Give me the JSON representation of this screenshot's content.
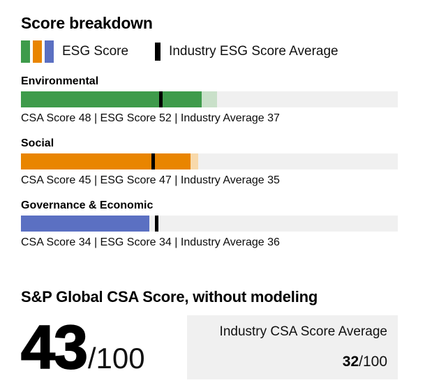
{
  "title": "Score breakdown",
  "legend": {
    "esg_label": "ESG Score",
    "industry_label": "Industry ESG Score Average",
    "stripe_colors": [
      "#3e9b4b",
      "#e98500",
      "#5b70c2"
    ],
    "marker_color": "#000000"
  },
  "track_color": "#f0f0f0",
  "sections": [
    {
      "name": "Environmental",
      "csa": 48,
      "esg": 52,
      "industry": 37,
      "color": "#3e9b4b",
      "light_color": "#c9e0c9",
      "info": "CSA Score 48 | ESG Score 52 | Industry Average 37"
    },
    {
      "name": "Social",
      "csa": 45,
      "esg": 47,
      "industry": 35,
      "color": "#e98500",
      "light_color": "#f8d9ab",
      "info": "CSA Score 45 | ESG Score 47 | Industry Average 35"
    },
    {
      "name": "Governance & Economic",
      "csa": 34,
      "esg": 34,
      "industry": 36,
      "color": "#5b70c2",
      "light_color": "#b4bfe4",
      "info": "CSA Score 34 | ESG Score 34 | Industry Average 36"
    }
  ],
  "summary": {
    "heading": "S&P Global CSA Score, without modeling",
    "score": "43",
    "score_suffix": "/100",
    "industry_box": {
      "label": "Industry CSA Score Average",
      "score": "32",
      "suffix": "/100"
    }
  },
  "chart_data": {
    "type": "bar",
    "orientation": "horizontal",
    "title": "Score breakdown",
    "categories": [
      "Environmental",
      "Social",
      "Governance & Economic"
    ],
    "series": [
      {
        "name": "CSA Score",
        "values": [
          48,
          45,
          34
        ]
      },
      {
        "name": "ESG Score",
        "values": [
          52,
          47,
          34
        ]
      },
      {
        "name": "Industry Average",
        "values": [
          37,
          35,
          36
        ]
      }
    ],
    "xlim": [
      0,
      100
    ],
    "grid": false,
    "legend_position": "top",
    "bar_colors": [
      "#3e9b4b",
      "#e98500",
      "#5b70c2"
    ],
    "summary": {
      "label": "S&P Global CSA Score, without modeling",
      "score": 43,
      "max": 100,
      "industry_csa_average": 32
    }
  }
}
